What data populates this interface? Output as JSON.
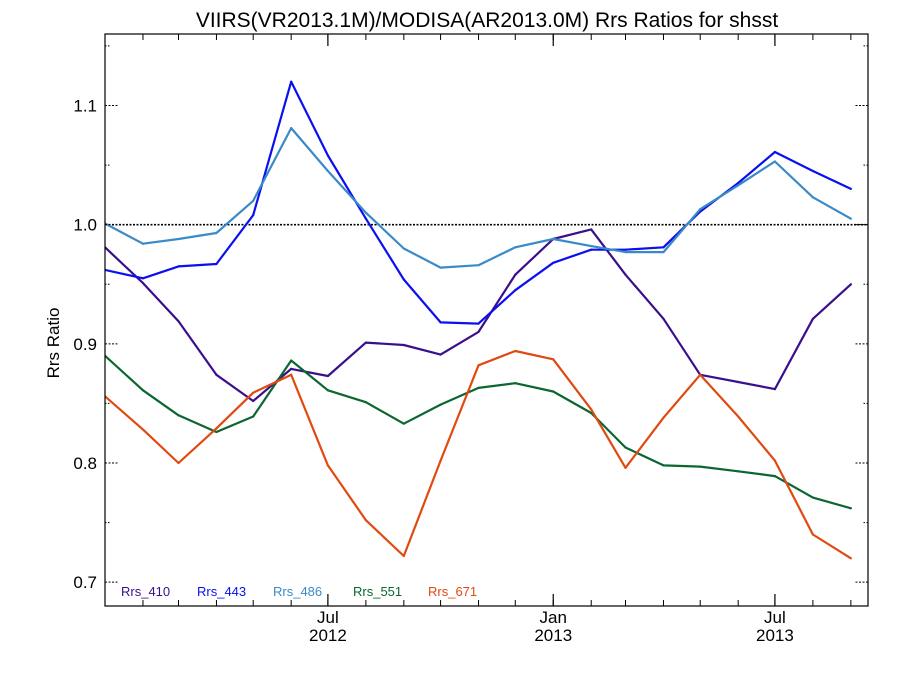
{
  "chart_data": {
    "type": "line",
    "title": "VIIRS(VR2013.1M)/MODISA(AR2013.0M)  Rrs Ratios for shsst",
    "xlabel": "",
    "ylabel": "Rrs Ratio",
    "ylim": [
      0.68,
      1.16
    ],
    "xlim": [
      "2012-01-01",
      "2013-09-15"
    ],
    "grid": false,
    "legend_placement": "bottom-left",
    "reference_line": {
      "y": 1.0,
      "style": "dotted"
    },
    "yticks": [
      {
        "value": 0.7,
        "label": "0.7"
      },
      {
        "value": 0.8,
        "label": "0.8"
      },
      {
        "value": 0.9,
        "label": "0.9"
      },
      {
        "value": 1.0,
        "label": "1.0"
      },
      {
        "value": 1.1,
        "label": "1.1"
      }
    ],
    "xticks": [
      {
        "value": "2012-07-01",
        "line1": "Jul",
        "line2": "2012"
      },
      {
        "value": "2013-01-01",
        "line1": "Jan",
        "line2": "2013"
      },
      {
        "value": "2013-07-01",
        "line1": "Jul",
        "line2": "2013"
      }
    ],
    "x": [
      "2012-01-01",
      "2012-02-01",
      "2012-03-01",
      "2012-04-01",
      "2012-05-01",
      "2012-06-01",
      "2012-07-01",
      "2012-08-01",
      "2012-09-01",
      "2012-10-01",
      "2012-11-01",
      "2012-12-01",
      "2013-01-01",
      "2013-02-01",
      "2013-03-01",
      "2013-04-01",
      "2013-05-01",
      "2013-06-01",
      "2013-07-01",
      "2013-08-01",
      "2013-09-01"
    ],
    "series": [
      {
        "name": "Rrs_410",
        "color": "#3a0f8c",
        "values": [
          0.981,
          0.951,
          0.919,
          0.874,
          0.852,
          0.879,
          0.873,
          0.901,
          0.899,
          0.891,
          0.91,
          0.958,
          0.988,
          0.996,
          0.958,
          0.921,
          0.874,
          0.868,
          0.862,
          0.921,
          0.95
        ]
      },
      {
        "name": "Rrs_443",
        "color": "#0a10f0",
        "values": [
          0.962,
          0.955,
          0.965,
          0.967,
          1.008,
          1.12,
          1.058,
          1.005,
          0.954,
          0.918,
          0.917,
          0.945,
          0.968,
          0.979,
          0.979,
          0.981,
          1.011,
          1.035,
          1.061,
          1.045,
          1.03
        ]
      },
      {
        "name": "Rrs_486",
        "color": "#3a8ac8",
        "values": [
          1.001,
          0.984,
          0.988,
          0.993,
          1.02,
          1.081,
          1.045,
          1.01,
          0.98,
          0.964,
          0.966,
          0.981,
          0.988,
          0.982,
          0.977,
          0.977,
          1.013,
          1.033,
          1.053,
          1.023,
          1.005
        ]
      },
      {
        "name": "Rrs_551",
        "color": "#0b6630",
        "values": [
          0.89,
          0.861,
          0.84,
          0.826,
          0.839,
          0.886,
          0.861,
          0.851,
          0.833,
          0.849,
          0.863,
          0.867,
          0.86,
          0.842,
          0.813,
          0.798,
          0.797,
          0.793,
          0.789,
          0.771,
          0.762
        ]
      },
      {
        "name": "Rrs_671",
        "color": "#e04a10",
        "values": [
          0.856,
          0.828,
          0.8,
          0.829,
          0.859,
          0.874,
          0.798,
          0.752,
          0.722,
          0.802,
          0.882,
          0.894,
          0.887,
          0.845,
          0.796,
          0.838,
          0.874,
          0.839,
          0.802,
          0.74,
          0.72
        ]
      }
    ]
  }
}
